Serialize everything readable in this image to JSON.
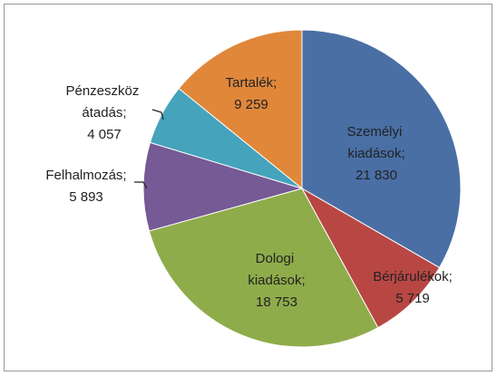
{
  "chart_data": {
    "type": "pie",
    "categories": [
      "Személyi kiadások;",
      "Bérjárulékok;",
      "Dologi kiadások;",
      "Felhalmozás;",
      "Pénzeszköz átadás;",
      "Tartalék;"
    ],
    "values": [
      21830,
      5719,
      18753,
      5893,
      4057,
      9259
    ],
    "value_labels": [
      "21 830",
      "5 719",
      "18 753",
      "5 893",
      "4 057",
      "9 259"
    ],
    "colors": [
      "#4a6fa5",
      "#b84744",
      "#8fac4b",
      "#755a95",
      "#45a3bc",
      "#e0873a"
    ]
  }
}
